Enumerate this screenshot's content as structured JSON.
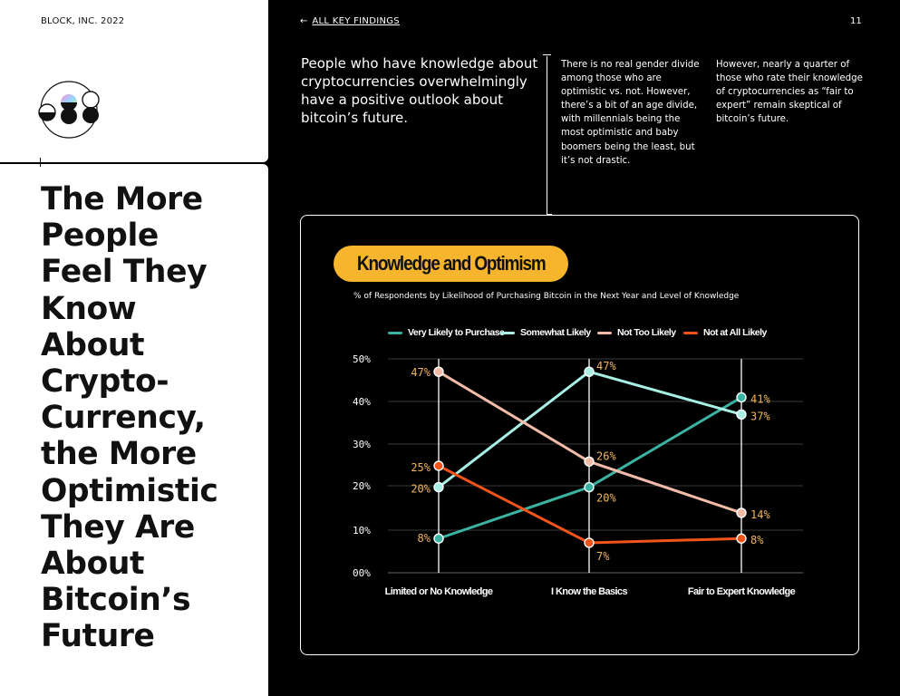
{
  "brand": "BLOCK, INC. 2022",
  "nav": {
    "back_link": "ALL KEY FINDINGS",
    "page_number": "11"
  },
  "headline": [
    "The More",
    "People",
    "Feel They",
    "Know",
    "About",
    "Crypto-",
    "Currency,",
    "the More",
    "Optimistic",
    "They Are",
    "About",
    "Bitcoin’s",
    "Future"
  ],
  "intro": "People who have knowledge about cryptocurrencies overwhelmingly have a positive outlook about bitcoin’s future.",
  "notes": {
    "a": "There is no real gender divide among those who are optimistic vs. not. However, there’s a bit of an age divide, with millennials being the most optimistic and baby boomers being the least, but it’s not drastic.",
    "b": "However, nearly a quarter of those who rate their knowledge of cryptocurrencies as “fair to expert” remain skeptical of bitcoin’s future."
  },
  "colors": {
    "accent": "#f6b52c",
    "very_likely": "#3bb3a2",
    "somewhat_likely": "#a8f0e6",
    "not_too_likely": "#f2bba8",
    "not_at_all_likely": "#f0541a",
    "label": "#f3b45a"
  },
  "chart_data": {
    "type": "line",
    "title": "Knowledge and Optimism",
    "subtitle": "% of Respondents by Likelihood of Purchasing Bitcoin in the Next Year and Level of Knowledge",
    "categories": [
      "Limited or No Knowledge",
      "I Know the Basics",
      "Fair to Expert Knowledge"
    ],
    "yticks": [
      "00%",
      "10%",
      "20%",
      "30%",
      "40%",
      "50%"
    ],
    "ylim": [
      0,
      50
    ],
    "series": [
      {
        "name": "Very Likely to Purchase",
        "color": "#3bb3a2",
        "values": [
          8,
          20,
          41
        ],
        "labels": [
          "8%",
          "20%",
          "41%"
        ]
      },
      {
        "name": "Somewhat Likely",
        "color": "#a8f0e6",
        "values": [
          20,
          47,
          37
        ],
        "labels": [
          "20%",
          "47%",
          "37%"
        ]
      },
      {
        "name": "Not Too Likely",
        "color": "#f2bba8",
        "values": [
          47,
          26,
          14
        ],
        "labels": [
          "47%",
          "26%",
          "14%"
        ]
      },
      {
        "name": "Not at All Likely",
        "color": "#f0541a",
        "values": [
          25,
          7,
          8
        ],
        "labels": [
          "25%",
          "7%",
          "8%"
        ]
      }
    ],
    "legend_position": "top",
    "grid": true
  }
}
